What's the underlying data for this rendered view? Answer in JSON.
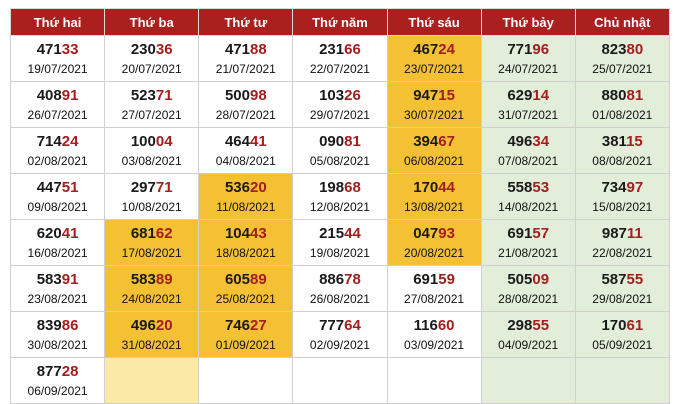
{
  "headers": [
    "Thứ hai",
    "Thứ ba",
    "Thứ tư",
    "Thứ năm",
    "Thứ sáu",
    "Thứ bảy",
    "Chủ nhật"
  ],
  "colors": {
    "header_bg": "#a9201f",
    "highlight": "#f4c034",
    "highlight_light": "#fbe9a8",
    "weekend": "#e2eed9",
    "tail": "#a31e1e"
  },
  "rows": [
    [
      {
        "head": "471",
        "tail": "33",
        "date": "19/07/2021"
      },
      {
        "head": "230",
        "tail": "36",
        "date": "20/07/2021"
      },
      {
        "head": "471",
        "tail": "88",
        "date": "21/07/2021"
      },
      {
        "head": "231",
        "tail": "66",
        "date": "22/07/2021"
      },
      {
        "head": "467",
        "tail": "24",
        "date": "23/07/2021",
        "hl": true
      },
      {
        "head": "771",
        "tail": "96",
        "date": "24/07/2021"
      },
      {
        "head": "823",
        "tail": "80",
        "date": "25/07/2021"
      }
    ],
    [
      {
        "head": "408",
        "tail": "91",
        "date": "26/07/2021"
      },
      {
        "head": "523",
        "tail": "71",
        "date": "27/07/2021"
      },
      {
        "head": "500",
        "tail": "98",
        "date": "28/07/2021"
      },
      {
        "head": "103",
        "tail": "26",
        "date": "29/07/2021"
      },
      {
        "head": "947",
        "tail": "15",
        "date": "30/07/2021",
        "hl": true
      },
      {
        "head": "629",
        "tail": "14",
        "date": "31/07/2021"
      },
      {
        "head": "880",
        "tail": "81",
        "date": "01/08/2021"
      }
    ],
    [
      {
        "head": "714",
        "tail": "24",
        "date": "02/08/2021"
      },
      {
        "head": "100",
        "tail": "04",
        "date": "03/08/2021"
      },
      {
        "head": "464",
        "tail": "41",
        "date": "04/08/2021"
      },
      {
        "head": "090",
        "tail": "81",
        "date": "05/08/2021"
      },
      {
        "head": "394",
        "tail": "67",
        "date": "06/08/2021",
        "hl": true
      },
      {
        "head": "496",
        "tail": "34",
        "date": "07/08/2021"
      },
      {
        "head": "381",
        "tail": "15",
        "date": "08/08/2021"
      }
    ],
    [
      {
        "head": "447",
        "tail": "51",
        "date": "09/08/2021"
      },
      {
        "head": "297",
        "tail": "71",
        "date": "10/08/2021"
      },
      {
        "head": "536",
        "tail": "20",
        "date": "11/08/2021",
        "hl": true
      },
      {
        "head": "198",
        "tail": "68",
        "date": "12/08/2021"
      },
      {
        "head": "170",
        "tail": "44",
        "date": "13/08/2021",
        "hl": true
      },
      {
        "head": "558",
        "tail": "53",
        "date": "14/08/2021"
      },
      {
        "head": "734",
        "tail": "97",
        "date": "15/08/2021"
      }
    ],
    [
      {
        "head": "620",
        "tail": "41",
        "date": "16/08/2021"
      },
      {
        "head": "681",
        "tail": "62",
        "date": "17/08/2021",
        "hl": true
      },
      {
        "head": "104",
        "tail": "43",
        "date": "18/08/2021",
        "hl": true
      },
      {
        "head": "215",
        "tail": "44",
        "date": "19/08/2021"
      },
      {
        "head": "047",
        "tail": "93",
        "date": "20/08/2021",
        "hl": true
      },
      {
        "head": "691",
        "tail": "57",
        "date": "21/08/2021"
      },
      {
        "head": "987",
        "tail": "11",
        "date": "22/08/2021"
      }
    ],
    [
      {
        "head": "583",
        "tail": "91",
        "date": "23/08/2021"
      },
      {
        "head": "583",
        "tail": "89",
        "date": "24/08/2021",
        "hl": true
      },
      {
        "head": "605",
        "tail": "89",
        "date": "25/08/2021",
        "hl": true
      },
      {
        "head": "886",
        "tail": "78",
        "date": "26/08/2021"
      },
      {
        "head": "691",
        "tail": "59",
        "date": "27/08/2021"
      },
      {
        "head": "505",
        "tail": "09",
        "date": "28/08/2021"
      },
      {
        "head": "587",
        "tail": "55",
        "date": "29/08/2021"
      }
    ],
    [
      {
        "head": "839",
        "tail": "86",
        "date": "30/08/2021"
      },
      {
        "head": "496",
        "tail": "20",
        "date": "31/08/2021",
        "hl": true
      },
      {
        "head": "746",
        "tail": "27",
        "date": "01/09/2021",
        "hl": true
      },
      {
        "head": "777",
        "tail": "64",
        "date": "02/09/2021"
      },
      {
        "head": "116",
        "tail": "60",
        "date": "03/09/2021"
      },
      {
        "head": "298",
        "tail": "55",
        "date": "04/09/2021"
      },
      {
        "head": "170",
        "tail": "61",
        "date": "05/09/2021"
      }
    ],
    [
      {
        "head": "877",
        "tail": "28",
        "date": "06/09/2021"
      },
      {
        "empty": true,
        "light": true
      },
      {
        "empty": true
      },
      {
        "empty": true
      },
      {
        "empty": true
      },
      {
        "empty": true
      },
      {
        "empty": true
      }
    ]
  ]
}
